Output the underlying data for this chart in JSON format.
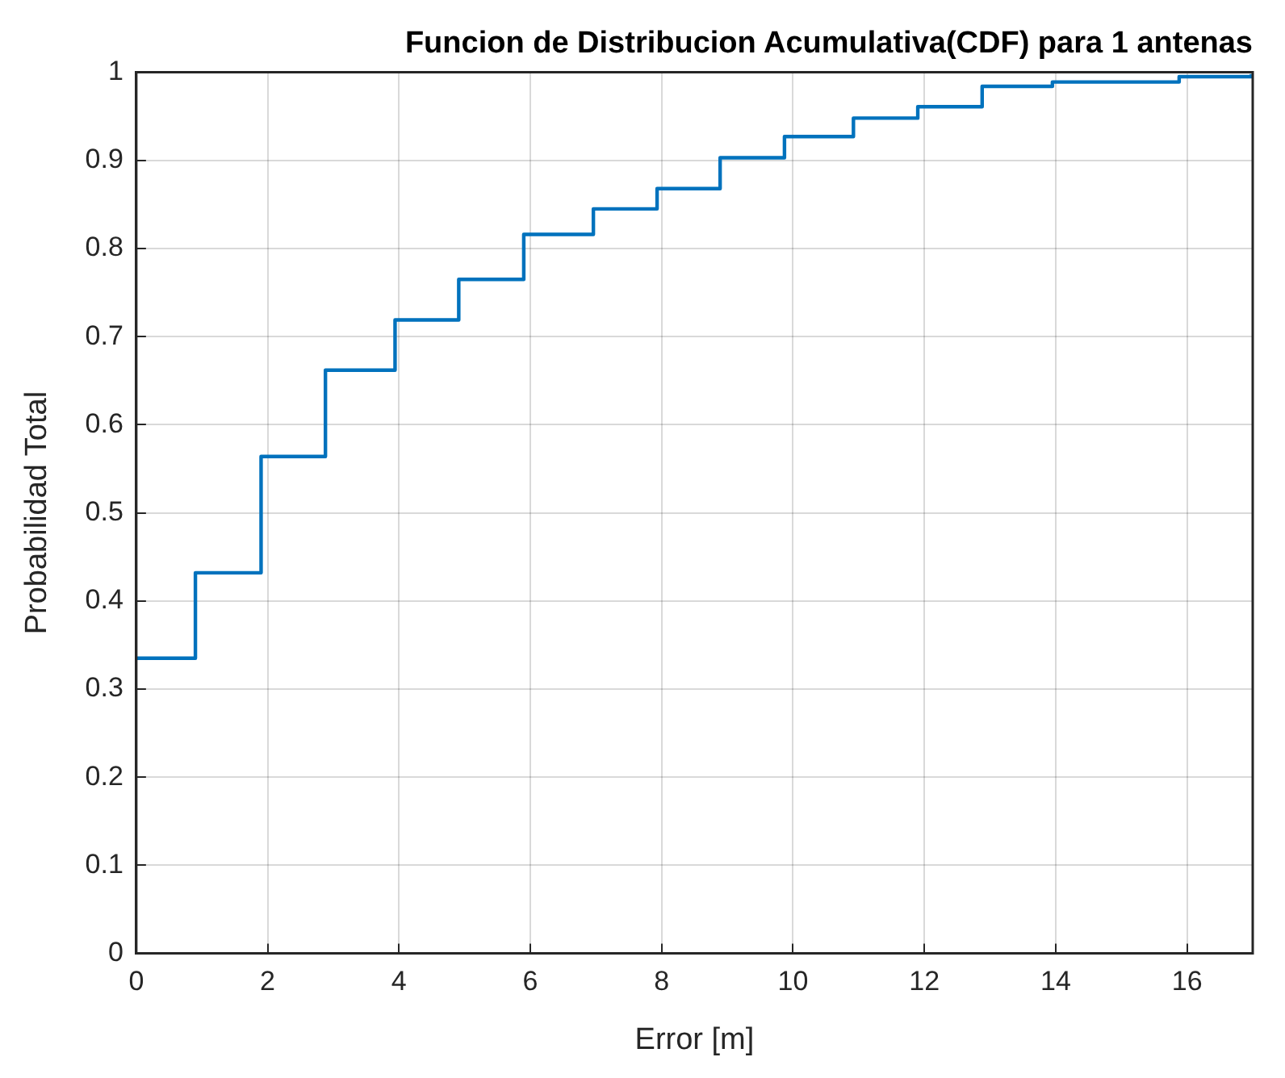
{
  "chart_data": {
    "type": "step",
    "title": "Funcion de Distribucion Acumulativa(CDF) para 1 antenas",
    "xlabel": "Error [m]",
    "ylabel": "Probabilidad Total",
    "x": [
      0,
      0.9,
      1.9,
      2.88,
      3.94,
      4.91,
      5.9,
      6.96,
      7.93,
      8.89,
      9.87,
      10.92,
      11.9,
      12.88,
      13.95,
      15.88,
      16.98
    ],
    "series": [
      {
        "color": "#0072bd",
        "values": [
          0.335,
          0.432,
          0.564,
          0.662,
          0.719,
          0.765,
          0.816,
          0.845,
          0.868,
          0.903,
          0.927,
          0.948,
          0.961,
          0.984,
          0.989,
          0.995,
          0.998
        ]
      }
    ],
    "xlim": [
      0,
      17
    ],
    "xticks": [
      0,
      2,
      4,
      6,
      8,
      10,
      12,
      14,
      16
    ],
    "ylim": [
      0,
      1
    ],
    "yticks": [
      0,
      0.1,
      0.2,
      0.3,
      0.4,
      0.5,
      0.6,
      0.7,
      0.8,
      0.9,
      1
    ],
    "grid": true,
    "legend": false,
    "marker": "none",
    "line_style": "solid"
  }
}
